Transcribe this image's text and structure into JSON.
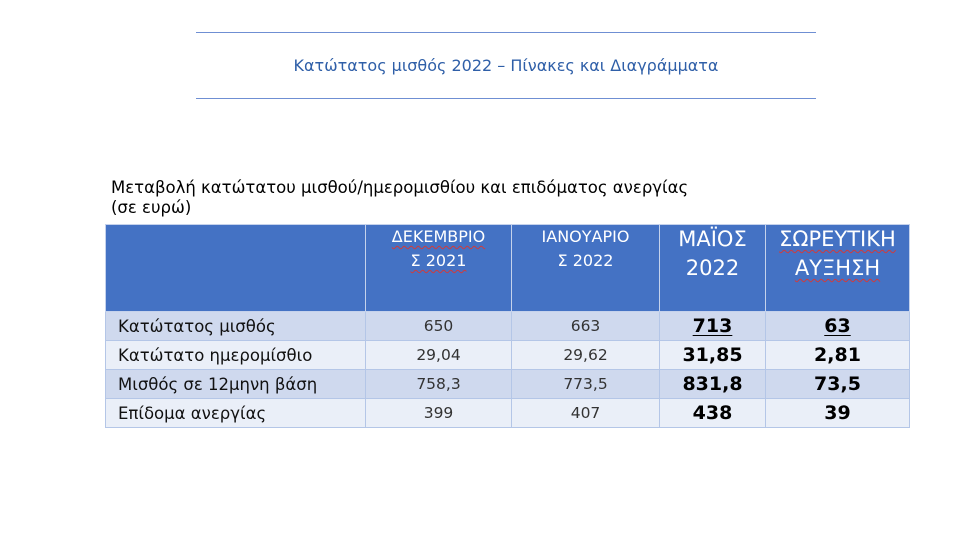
{
  "document": {
    "title": "Κατώτατος μισθός 2022 – Πίνακες και Διαγράμματα"
  },
  "table": {
    "caption_line1": "Μεταβολή κατώτατου μισθού/ημερομισθίου και επιδόματος ανεργίας",
    "caption_line2": "(σε ευρώ)",
    "headers": {
      "blank": "",
      "dec_line1": "ΔΕΚΕΜΒΡΙΟ",
      "dec_line2": "Σ 2021",
      "jan_line1": "ΙΑΝΟΥΑΡΙΟ",
      "jan_line2": "Σ 2022",
      "may_line1": "ΜΑΪΟΣ",
      "may_line2": "2022",
      "cum": "ΣΩΡΕΥΤΙΚΗ ΑΥΞΗΣΗ"
    },
    "rows": [
      {
        "label": "Κατώτατος μισθός",
        "dec2021": "650",
        "jan2022": "663",
        "may2022": "713",
        "cumulative": "63"
      },
      {
        "label": "Κατώτατο ημερομίσθιο",
        "dec2021": "29,04",
        "jan2022": "29,62",
        "may2022": "31,85",
        "cumulative": "2,81"
      },
      {
        "label": "Μισθός σε 12μηνη βάση",
        "dec2021": "758,3",
        "jan2022": "773,5",
        "may2022": "831,8",
        "cumulative": "73,5"
      },
      {
        "label": "Επίδομα ανεργίας",
        "dec2021": "399",
        "jan2022": "407",
        "may2022": "438",
        "cumulative": "39"
      }
    ],
    "colors": {
      "header_bg": "#4472c4",
      "row_odd": "#cfd9ee",
      "row_even": "#eaeff8",
      "title_color": "#2f5fa8"
    }
  }
}
